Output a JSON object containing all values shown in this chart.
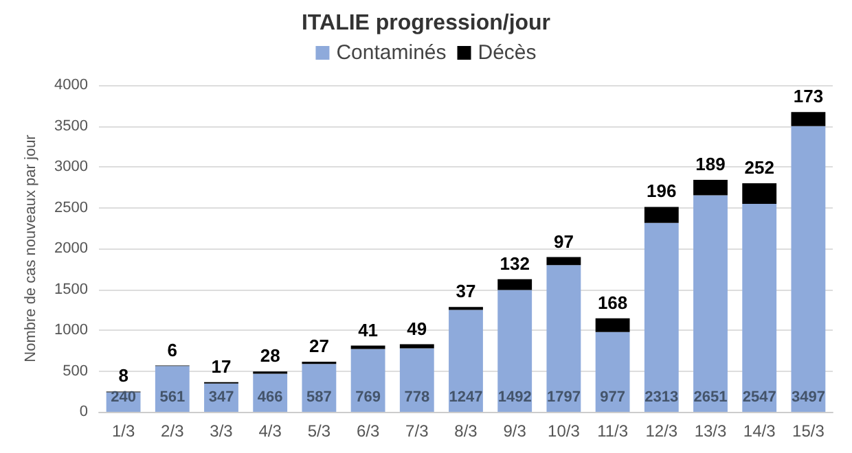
{
  "chart_data": {
    "type": "bar",
    "title": "ITALIE progression/jour",
    "ylabel": "Nombre de cas nouveaux par jour",
    "categories": [
      "1/3",
      "2/3",
      "3/3",
      "4/3",
      "5/3",
      "6/3",
      "7/3",
      "8/3",
      "9/3",
      "10/3",
      "11/3",
      "12/3",
      "13/3",
      "14/3",
      "15/3"
    ],
    "series": [
      {
        "name": "Contaminés",
        "color": "#8eaadb",
        "values": [
          240,
          561,
          347,
          466,
          587,
          769,
          778,
          1247,
          1492,
          1797,
          977,
          2313,
          2651,
          2547,
          3497
        ]
      },
      {
        "name": "Décès",
        "color": "#000000",
        "values": [
          8,
          6,
          17,
          28,
          27,
          41,
          49,
          37,
          132,
          97,
          168,
          196,
          189,
          252,
          173
        ]
      }
    ],
    "stacked": true,
    "data_labels": true,
    "ylim": [
      0,
      4000
    ],
    "yticks": [
      0,
      500,
      1000,
      1500,
      2000,
      2500,
      3000,
      3500,
      4000
    ],
    "grid": "y",
    "legend": "top"
  }
}
